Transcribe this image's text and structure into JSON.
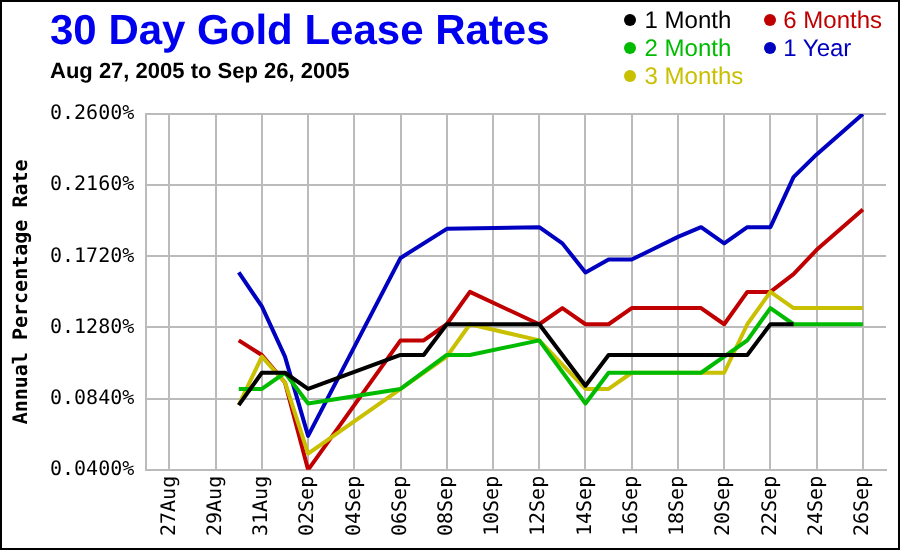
{
  "chart_data": {
    "type": "line",
    "title": "30 Day Gold Lease Rates",
    "subtitle": "Aug 27, 2005 to Sep 26, 2005",
    "ylabel": "Annual Percentage Rate",
    "series": [
      {
        "name": "1 Month",
        "color": "#000000",
        "x": [
          "2005-08-30",
          "2005-08-31",
          "2005-09-01",
          "2005-09-02",
          "2005-09-06",
          "2005-09-07",
          "2005-09-08",
          "2005-09-12",
          "2005-09-14",
          "2005-09-15",
          "2005-09-21",
          "2005-09-22",
          "2005-09-23"
        ],
        "values": [
          0.08,
          0.1,
          0.1,
          0.09,
          0.111,
          0.111,
          0.13,
          0.13,
          0.092,
          0.111,
          0.111,
          0.13,
          0.13
        ]
      },
      {
        "name": "2 Month",
        "color": "#00bb00",
        "x": [
          "2005-08-30",
          "2005-08-31",
          "2005-09-01",
          "2005-09-02",
          "2005-09-06",
          "2005-09-08",
          "2005-09-09",
          "2005-09-12",
          "2005-09-14",
          "2005-09-15",
          "2005-09-19",
          "2005-09-21",
          "2005-09-22",
          "2005-09-23",
          "2005-09-26"
        ],
        "values": [
          0.09,
          0.09,
          0.1,
          0.081,
          0.09,
          0.111,
          0.111,
          0.12,
          0.081,
          0.1,
          0.1,
          0.12,
          0.14,
          0.13,
          0.13
        ]
      },
      {
        "name": "3 Months",
        "color": "#c8c000",
        "x": [
          "2005-08-30",
          "2005-08-31",
          "2005-09-01",
          "2005-09-02",
          "2005-09-08",
          "2005-09-09",
          "2005-09-12",
          "2005-09-14",
          "2005-09-15",
          "2005-09-16",
          "2005-09-20",
          "2005-09-21",
          "2005-09-22",
          "2005-09-23",
          "2005-09-26"
        ],
        "values": [
          0.08,
          0.11,
          0.094,
          0.05,
          0.11,
          0.13,
          0.12,
          0.09,
          0.09,
          0.1,
          0.1,
          0.13,
          0.15,
          0.14,
          0.14
        ]
      },
      {
        "name": "6 Months",
        "color": "#c00000",
        "x": [
          "2005-08-30",
          "2005-08-31",
          "2005-09-01",
          "2005-09-02",
          "2005-09-06",
          "2005-09-07",
          "2005-09-08",
          "2005-09-09",
          "2005-09-12",
          "2005-09-13",
          "2005-09-14",
          "2005-09-15",
          "2005-09-16",
          "2005-09-19",
          "2005-09-20",
          "2005-09-21",
          "2005-09-22",
          "2005-09-23",
          "2005-09-24",
          "2005-09-26"
        ],
        "values": [
          0.12,
          0.111,
          0.094,
          0.04,
          0.12,
          0.12,
          0.13,
          0.15,
          0.13,
          0.14,
          0.13,
          0.13,
          0.14,
          0.14,
          0.13,
          0.15,
          0.15,
          0.161,
          0.176,
          0.201
        ]
      },
      {
        "name": "1 Year",
        "color": "#0000c0",
        "x": [
          "2005-08-30",
          "2005-08-31",
          "2005-09-01",
          "2005-09-02",
          "2005-09-06",
          "2005-09-08",
          "2005-09-12",
          "2005-09-13",
          "2005-09-14",
          "2005-09-15",
          "2005-09-16",
          "2005-09-17",
          "2005-09-18",
          "2005-09-19",
          "2005-09-20",
          "2005-09-21",
          "2005-09-22",
          "2005-09-23",
          "2005-09-24",
          "2005-09-26"
        ],
        "values": [
          0.162,
          0.141,
          0.11,
          0.061,
          0.171,
          0.189,
          0.19,
          0.18,
          0.162,
          0.17,
          0.17,
          0.177,
          0.184,
          0.19,
          0.18,
          0.19,
          0.19,
          0.221,
          0.235,
          0.26
        ]
      }
    ],
    "xlim": [
      "2005-08-26",
      "2005-09-27"
    ],
    "xticks": [
      {
        "value": "2005-08-27",
        "label": "27Aug"
      },
      {
        "value": "2005-08-29",
        "label": "29Aug"
      },
      {
        "value": "2005-08-31",
        "label": "31Aug"
      },
      {
        "value": "2005-09-02",
        "label": "02Sep"
      },
      {
        "value": "2005-09-04",
        "label": "04Sep"
      },
      {
        "value": "2005-09-06",
        "label": "06Sep"
      },
      {
        "value": "2005-09-08",
        "label": "08Sep"
      },
      {
        "value": "2005-09-10",
        "label": "10Sep"
      },
      {
        "value": "2005-09-12",
        "label": "12Sep"
      },
      {
        "value": "2005-09-14",
        "label": "14Sep"
      },
      {
        "value": "2005-09-16",
        "label": "16Sep"
      },
      {
        "value": "2005-09-18",
        "label": "18Sep"
      },
      {
        "value": "2005-09-20",
        "label": "20Sep"
      },
      {
        "value": "2005-09-22",
        "label": "22Sep"
      },
      {
        "value": "2005-09-24",
        "label": "24Sep"
      },
      {
        "value": "2005-09-26",
        "label": "26Sep"
      }
    ],
    "ylim": [
      0.04,
      0.26
    ],
    "yticks": [
      {
        "value": 0.04,
        "label": "0.0400%"
      },
      {
        "value": 0.084,
        "label": "0.0840%"
      },
      {
        "value": 0.128,
        "label": "0.1280%"
      },
      {
        "value": 0.172,
        "label": "0.1720%"
      },
      {
        "value": 0.216,
        "label": "0.2160%"
      },
      {
        "value": 0.26,
        "label": "0.2600%"
      }
    ],
    "grid": true,
    "legend": "top right",
    "marker": "none",
    "line_style": "solid"
  }
}
